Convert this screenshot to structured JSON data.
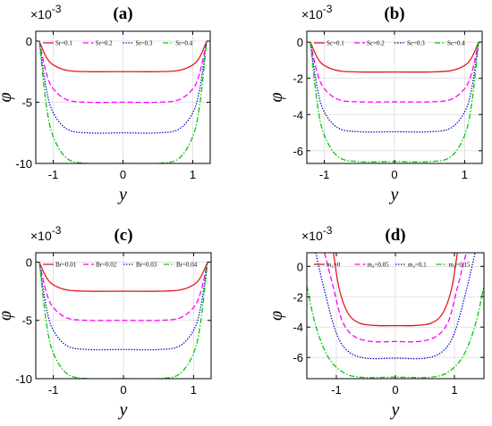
{
  "chart_data": [
    {
      "type": "line",
      "panel_label": "(a)",
      "xlabel": "y",
      "ylabel": "φ",
      "y_scale_label": "×10",
      "y_scale_exponent": "-3",
      "xlim": [
        -1.25,
        1.25
      ],
      "ylim": [
        -10,
        0.8
      ],
      "xticks": [
        -1,
        0,
        1
      ],
      "yticks": [
        0,
        -5,
        -10
      ],
      "ytick_labels": [
        "0",
        "-5",
        "-10"
      ],
      "grid": true,
      "legend": "top",
      "series": [
        {
          "name": "Sr=0.1",
          "color": "#e41a1c",
          "dash": "solid",
          "min": -2.5,
          "x": [
            -1.2,
            -1.1,
            -1.0,
            -0.8,
            -0.5,
            0,
            0.5,
            0.8,
            1.0,
            1.1,
            1.2
          ],
          "y": [
            0,
            -1.3,
            -1.95,
            -2.4,
            -2.5,
            -2.5,
            -2.5,
            -2.4,
            -1.95,
            -1.3,
            0
          ]
        },
        {
          "name": "Sr=0.2",
          "color": "#ff00ff",
          "dash": "dashed",
          "min": -5.0,
          "x": [
            -1.2,
            -1.1,
            -1.0,
            -0.8,
            -0.5,
            0,
            0.5,
            0.8,
            1.0,
            1.1,
            1.2
          ],
          "y": [
            0,
            -2.6,
            -3.9,
            -4.8,
            -5.0,
            -5.0,
            -5.0,
            -4.8,
            -3.9,
            -2.6,
            0
          ]
        },
        {
          "name": "Sr=0.3",
          "color": "#0000cc",
          "dash": "dotted",
          "min": -7.5,
          "x": [
            -1.2,
            -1.1,
            -1.0,
            -0.8,
            -0.5,
            0,
            0.5,
            0.8,
            1.0,
            1.1,
            1.2
          ],
          "y": [
            0,
            -3.9,
            -5.85,
            -7.2,
            -7.5,
            -7.5,
            -7.5,
            -7.2,
            -5.85,
            -3.9,
            0
          ]
        },
        {
          "name": "Sr=0.4",
          "color": "#00cc00",
          "dash": "dashdot",
          "min": -10.0,
          "x": [
            -1.2,
            -1.1,
            -1.0,
            -0.8,
            -0.5,
            0,
            0.5,
            0.8,
            1.0,
            1.1,
            1.2
          ],
          "y": [
            0,
            -5.2,
            -7.8,
            -9.6,
            -10.0,
            -10.0,
            -10.0,
            -9.6,
            -7.8,
            -5.2,
            0
          ]
        }
      ]
    },
    {
      "type": "line",
      "panel_label": "(b)",
      "xlabel": "y",
      "ylabel": "φ",
      "y_scale_label": "×10",
      "y_scale_exponent": "-3",
      "xlim": [
        -1.25,
        1.25
      ],
      "ylim": [
        -6.7,
        0.6
      ],
      "xticks": [
        -1,
        0,
        1
      ],
      "yticks": [
        0,
        -2,
        -4,
        -6
      ],
      "ytick_labels": [
        "0",
        "-2",
        "-4",
        "-6"
      ],
      "grid": true,
      "legend": "top",
      "series": [
        {
          "name": "Sc=0.1",
          "color": "#e41a1c",
          "dash": "solid",
          "min": -1.65,
          "x": [
            -1.2,
            -1.1,
            -1.0,
            -0.8,
            -0.5,
            0,
            0.5,
            0.8,
            1.0,
            1.1,
            1.2
          ],
          "y": [
            0,
            -0.86,
            -1.29,
            -1.58,
            -1.65,
            -1.65,
            -1.65,
            -1.58,
            -1.29,
            -0.86,
            0
          ]
        },
        {
          "name": "Sc=0.2",
          "color": "#ff00ff",
          "dash": "dashed",
          "min": -3.3,
          "x": [
            -1.2,
            -1.1,
            -1.0,
            -0.8,
            -0.5,
            0,
            0.5,
            0.8,
            1.0,
            1.1,
            1.2
          ],
          "y": [
            0,
            -1.72,
            -2.57,
            -3.17,
            -3.3,
            -3.3,
            -3.3,
            -3.17,
            -2.57,
            -1.72,
            0
          ]
        },
        {
          "name": "Sc=0.3",
          "color": "#0000cc",
          "dash": "dotted",
          "min": -4.95,
          "x": [
            -1.2,
            -1.1,
            -1.0,
            -0.8,
            -0.5,
            0,
            0.5,
            0.8,
            1.0,
            1.1,
            1.2
          ],
          "y": [
            0,
            -2.57,
            -3.86,
            -4.75,
            -4.95,
            -4.95,
            -4.95,
            -4.75,
            -3.86,
            -2.57,
            0
          ]
        },
        {
          "name": "Sc=0.4",
          "color": "#00cc00",
          "dash": "dashdot",
          "min": -6.6,
          "x": [
            -1.2,
            -1.1,
            -1.0,
            -0.8,
            -0.5,
            0,
            0.5,
            0.8,
            1.0,
            1.1,
            1.2
          ],
          "y": [
            0,
            -3.43,
            -5.15,
            -6.34,
            -6.6,
            -6.6,
            -6.6,
            -6.34,
            -5.15,
            -3.43,
            0
          ]
        }
      ]
    },
    {
      "type": "line",
      "panel_label": "(c)",
      "xlabel": "y",
      "ylabel": "φ",
      "y_scale_label": "×10",
      "y_scale_exponent": "-3",
      "xlim": [
        -1.25,
        1.25
      ],
      "ylim": [
        -10,
        0.8
      ],
      "xticks": [
        -1,
        0,
        1
      ],
      "yticks": [
        0,
        -5,
        -10
      ],
      "ytick_labels": [
        "0",
        "-5",
        "-10"
      ],
      "grid": true,
      "legend": "top",
      "series": [
        {
          "name": "Br=0.01",
          "color": "#e41a1c",
          "dash": "solid",
          "min": -2.5,
          "x": [
            -1.2,
            -1.1,
            -1.0,
            -0.8,
            -0.5,
            0,
            0.5,
            0.8,
            1.0,
            1.1,
            1.2
          ],
          "y": [
            0,
            -1.3,
            -1.95,
            -2.4,
            -2.5,
            -2.5,
            -2.5,
            -2.4,
            -1.95,
            -1.3,
            0
          ]
        },
        {
          "name": "Br=0.02",
          "color": "#ff00ff",
          "dash": "dashed",
          "min": -5.0,
          "x": [
            -1.2,
            -1.1,
            -1.0,
            -0.8,
            -0.5,
            0,
            0.5,
            0.8,
            1.0,
            1.1,
            1.2
          ],
          "y": [
            0,
            -2.6,
            -3.9,
            -4.8,
            -5.0,
            -5.0,
            -5.0,
            -4.8,
            -3.9,
            -2.6,
            0
          ]
        },
        {
          "name": "Br=0.03",
          "color": "#0000cc",
          "dash": "dotted",
          "min": -7.5,
          "x": [
            -1.2,
            -1.1,
            -1.0,
            -0.8,
            -0.5,
            0,
            0.5,
            0.8,
            1.0,
            1.1,
            1.2
          ],
          "y": [
            0,
            -3.9,
            -5.85,
            -7.2,
            -7.5,
            -7.5,
            -7.5,
            -7.2,
            -5.85,
            -3.9,
            0
          ]
        },
        {
          "name": "Br=0.04",
          "color": "#00cc00",
          "dash": "dashdot",
          "min": -10.0,
          "x": [
            -1.2,
            -1.1,
            -1.0,
            -0.8,
            -0.5,
            0,
            0.5,
            0.8,
            1.0,
            1.1,
            1.2
          ],
          "y": [
            0,
            -5.2,
            -7.8,
            -9.6,
            -10.0,
            -10.0,
            -10.0,
            -9.6,
            -7.8,
            -5.2,
            0
          ]
        }
      ]
    },
    {
      "type": "line",
      "panel_label": "(d)",
      "xlabel": "y",
      "ylabel": "φ",
      "y_scale_label": "×10",
      "y_scale_exponent": "-3",
      "xlim": [
        -1.5,
        1.5
      ],
      "ylim": [
        -7.4,
        0.9
      ],
      "xticks": [
        -1,
        0,
        1
      ],
      "yticks": [
        0,
        -2,
        -4,
        -6
      ],
      "ytick_labels": [
        "0",
        "-2",
        "-4",
        "-6"
      ],
      "grid": true,
      "legend": "top",
      "series": [
        {
          "name": "m₂=0",
          "color": "#e41a1c",
          "dash": "solid",
          "min": -3.9,
          "x": [
            -1.05,
            -0.95,
            -0.8,
            -0.6,
            -0.3,
            0,
            0.3,
            0.6,
            0.8,
            0.95,
            1.05
          ],
          "y": [
            0.9,
            -1.5,
            -3.1,
            -3.75,
            -3.9,
            -3.9,
            -3.9,
            -3.75,
            -3.1,
            -1.5,
            0.9
          ]
        },
        {
          "name": "m₂=0.05",
          "color": "#ff00ff",
          "dash": "dashed",
          "min": -4.95,
          "x": [
            -1.2,
            -1.05,
            -0.9,
            -0.7,
            -0.4,
            0,
            0.4,
            0.7,
            0.9,
            1.05,
            1.2
          ],
          "y": [
            0.9,
            -1.4,
            -3.6,
            -4.6,
            -4.95,
            -4.95,
            -4.95,
            -4.6,
            -3.6,
            -1.4,
            0.9
          ]
        },
        {
          "name": "m₂=0.1",
          "color": "#0000cc",
          "dash": "dotted",
          "min": -6.05,
          "x": [
            -1.35,
            -1.2,
            -1.0,
            -0.8,
            -0.5,
            0,
            0.5,
            0.8,
            1.0,
            1.2,
            1.35
          ],
          "y": [
            0.9,
            -1.6,
            -4.4,
            -5.6,
            -6.05,
            -6.05,
            -6.05,
            -5.6,
            -4.4,
            -1.6,
            0.9
          ]
        },
        {
          "name": "m₂=0.15",
          "color": "#00cc00",
          "dash": "dashdot",
          "min": -7.3,
          "x": [
            -1.5,
            -1.35,
            -1.15,
            -0.9,
            -0.6,
            0,
            0.6,
            0.9,
            1.15,
            1.35,
            1.5
          ],
          "y": [
            -1.3,
            -3.9,
            -5.9,
            -6.95,
            -7.3,
            -7.3,
            -7.3,
            -6.95,
            -5.9,
            -3.9,
            -1.3
          ]
        }
      ]
    }
  ]
}
